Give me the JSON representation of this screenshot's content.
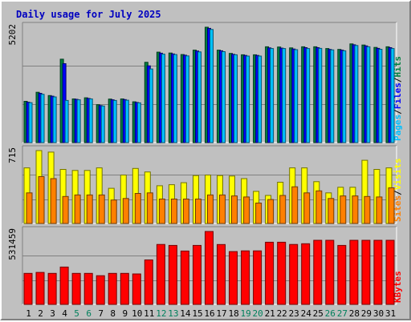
{
  "chart_data": {
    "type": "bar",
    "title": "Daily usage for July 2025",
    "categories": [
      "1",
      "2",
      "3",
      "4",
      "5",
      "6",
      "7",
      "8",
      "9",
      "10",
      "11",
      "12",
      "13",
      "14",
      "15",
      "16",
      "17",
      "18",
      "19",
      "20",
      "21",
      "22",
      "23",
      "24",
      "25",
      "26",
      "27",
      "28",
      "29",
      "30",
      "31"
    ],
    "weekend_days": [
      "5",
      "6",
      "12",
      "13",
      "19",
      "20",
      "26",
      "27"
    ],
    "panels": [
      {
        "ymax_label": "5202",
        "ymax": 5202,
        "grid_values": [
          3468,
          1734
        ],
        "legend": [
          {
            "text": "Pages",
            "color": "#00c0ff"
          },
          {
            "text": "/",
            "color": "#000000"
          },
          {
            "text": "Files",
            "color": "#0000ff"
          },
          {
            "text": "/",
            "color": "#000000"
          },
          {
            "text": "Hits",
            "color": "#008040"
          }
        ],
        "series": [
          {
            "name": "Hits",
            "color": "#008040",
            "values": [
              1860,
              2270,
              2120,
              3760,
              1970,
              2020,
              1710,
              1960,
              1970,
              1840,
              3620,
              4080,
              4040,
              3970,
              4170,
              5202,
              4170,
              4020,
              3960,
              3960,
              4320,
              4310,
              4270,
              4320,
              4320,
              4240,
              4200,
              4450,
              4400,
              4290,
              4320
            ]
          },
          {
            "name": "Files",
            "color": "#0000ff",
            "values": [
              1820,
              2220,
              2090,
              3560,
              1950,
              1990,
              1670,
              1930,
              1940,
              1810,
              3460,
              4030,
              4000,
              3940,
              4130,
              5150,
              4140,
              3980,
              3930,
              3930,
              4270,
              4260,
              4220,
              4280,
              4280,
              4200,
              4170,
              4410,
              4360,
              4250,
              4280
            ]
          },
          {
            "name": "Pages",
            "color": "#00c0ff",
            "values": [
              1800,
              2180,
              2060,
              1900,
              1930,
              1970,
              1650,
              1900,
              1910,
              1790,
              3320,
              3990,
              3970,
              3910,
              4090,
              5100,
              4100,
              3960,
              3900,
              3900,
              4240,
              4240,
              4190,
              4240,
              4250,
              4180,
              4140,
              4380,
              4320,
              4210,
              4240
            ]
          }
        ]
      },
      {
        "ymax_label": "715",
        "ymax": 715,
        "grid_values": [
          477,
          238
        ],
        "legend": [
          {
            "text": "Sites",
            "color": "#ff8000"
          },
          {
            "text": "/",
            "color": "#000000"
          },
          {
            "text": "Visits",
            "color": "#ffff00"
          }
        ],
        "series": [
          {
            "name": "Visits",
            "color": "#ffff00",
            "values": [
              545,
              715,
              700,
              530,
              520,
              520,
              545,
              345,
              475,
              540,
              505,
              370,
              380,
              400,
              470,
              475,
              470,
              465,
              440,
              315,
              275,
              405,
              545,
              545,
              410,
              300,
              355,
              355,
              620,
              530,
              545
            ]
          },
          {
            "name": "Sites",
            "color": "#ff8000",
            "values": [
              300,
              460,
              440,
              265,
              280,
              280,
              280,
              230,
              245,
              295,
              300,
              240,
              240,
              240,
              240,
              280,
              280,
              270,
              260,
              200,
              235,
              275,
              360,
              300,
              320,
              245,
              270,
              270,
              265,
              260,
              350
            ]
          }
        ]
      },
      {
        "ymax_label": "531459",
        "ymax": 531459,
        "grid_values": [
          354306,
          177153
        ],
        "legend": [
          {
            "text": "KBytes",
            "color": "#ff0000"
          }
        ],
        "series": [
          {
            "name": "KBytes",
            "color": "#ff0000",
            "values": [
              226000,
              233000,
              226000,
              272000,
              226000,
              226000,
              209000,
              226000,
              226000,
              222000,
              324000,
              437000,
              430000,
              389000,
              430000,
              531459,
              436000,
              385000,
              390000,
              390000,
              453000,
              453000,
              437000,
              442000,
              467000,
              467000,
              430000,
              467000,
              467000,
              467000,
              467000
            ]
          }
        ]
      }
    ],
    "colors": {
      "background": "#c0c0c0",
      "grid": "#808080",
      "weekday_label": "#000000",
      "weekend_label": "#00805c"
    }
  }
}
